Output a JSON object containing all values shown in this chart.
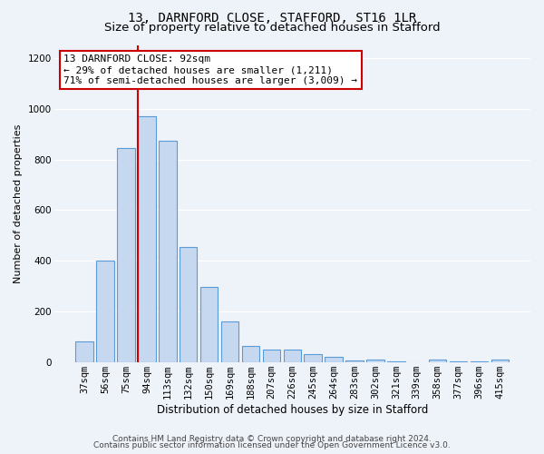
{
  "title1": "13, DARNFORD CLOSE, STAFFORD, ST16 1LR",
  "title2": "Size of property relative to detached houses in Stafford",
  "xlabel": "Distribution of detached houses by size in Stafford",
  "ylabel": "Number of detached properties",
  "categories": [
    "37sqm",
    "56sqm",
    "75sqm",
    "94sqm",
    "113sqm",
    "132sqm",
    "150sqm",
    "169sqm",
    "188sqm",
    "207sqm",
    "226sqm",
    "245sqm",
    "264sqm",
    "283sqm",
    "302sqm",
    "321sqm",
    "339sqm",
    "358sqm",
    "377sqm",
    "396sqm",
    "415sqm"
  ],
  "values": [
    80,
    400,
    845,
    970,
    875,
    455,
    295,
    160,
    65,
    50,
    50,
    30,
    20,
    5,
    8,
    2,
    0,
    10,
    2,
    2,
    10
  ],
  "bar_color": "#c5d8f0",
  "bar_edge_color": "#5b9bd5",
  "background_color": "#eef2f9",
  "grid_color": "#ffffff",
  "vline_color": "#cc0000",
  "annotation_text": "13 DARNFORD CLOSE: 92sqm\n← 29% of detached houses are smaller (1,211)\n71% of semi-detached houses are larger (3,009) →",
  "annotation_box_color": "#ffffff",
  "annotation_box_edge": "#cc0000",
  "ylim": [
    0,
    1250
  ],
  "yticks": [
    0,
    200,
    400,
    600,
    800,
    1000,
    1200
  ],
  "footer1": "Contains HM Land Registry data © Crown copyright and database right 2024.",
  "footer2": "Contains public sector information licensed under the Open Government Licence v3.0.",
  "title1_fontsize": 10,
  "title2_fontsize": 9.5,
  "xlabel_fontsize": 8.5,
  "ylabel_fontsize": 8,
  "tick_fontsize": 7.5,
  "annotation_fontsize": 8,
  "footer_fontsize": 6.5
}
